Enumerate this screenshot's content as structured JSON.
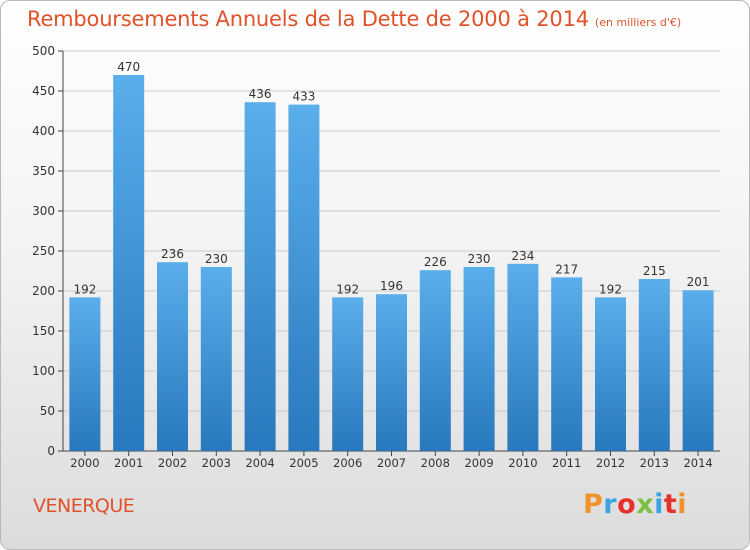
{
  "header": {
    "title": "Remboursements Annuels de la Dette de 2000 à 2014",
    "unit": "(en milliers d'€)"
  },
  "commune": "VENERQUE",
  "logo": {
    "letters": [
      "P",
      "r",
      "o",
      "x",
      "i",
      "t",
      "i"
    ],
    "colors": [
      "#f0932a",
      "#3aa4e3",
      "#e5302b",
      "#7cc043",
      "#3aa4e3",
      "#e5302b",
      "#f0932a"
    ]
  },
  "colors": {
    "bar_top": "#5aaeea",
    "bar_bottom": "#2878bd",
    "axis": "#444444",
    "grid": "#cccccc"
  },
  "chart_data": {
    "type": "bar",
    "title": "Remboursements Annuels de la Dette de 2000 à 2014",
    "categories": [
      "2000",
      "2001",
      "2002",
      "2003",
      "2004",
      "2005",
      "2006",
      "2007",
      "2008",
      "2009",
      "2010",
      "2011",
      "2012",
      "2013",
      "2014"
    ],
    "values": [
      192,
      470,
      236,
      230,
      436,
      433,
      192,
      196,
      226,
      230,
      234,
      217,
      192,
      215,
      201
    ],
    "ylim": [
      0,
      500
    ],
    "yticks": [
      0,
      50,
      100,
      150,
      200,
      250,
      300,
      350,
      400,
      450,
      500
    ],
    "grid": true
  }
}
